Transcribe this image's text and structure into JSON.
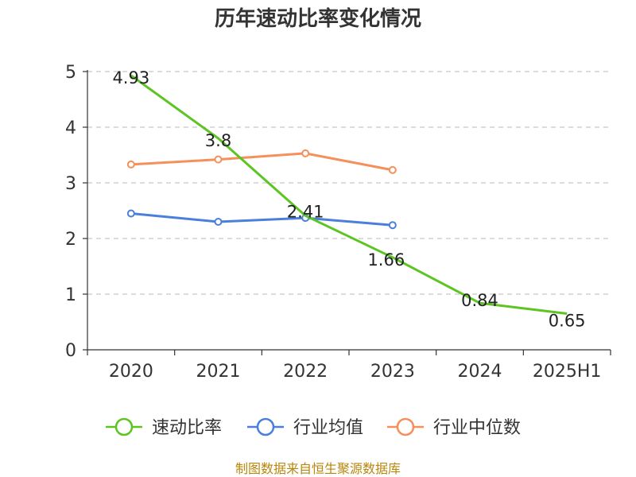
{
  "chart_data": {
    "type": "line",
    "title": "历年速动比率变化情况",
    "categories": [
      "2020",
      "2021",
      "2022",
      "2023",
      "2024",
      "2025H1"
    ],
    "ylim": [
      0,
      5
    ],
    "yticks": [
      "0",
      "1",
      "2",
      "3",
      "4",
      "5"
    ],
    "grid": true,
    "legend_position": "bottom",
    "series": [
      {
        "name": "速动比率",
        "color": "#5cc522",
        "values": [
          4.93,
          3.8,
          2.41,
          1.66,
          0.84,
          0.65
        ],
        "labels": [
          "4.93",
          "3.8",
          "2.41",
          "1.66",
          "0.84",
          "0.65"
        ],
        "show_markers": false
      },
      {
        "name": "行业均值",
        "color": "#4a7fdc",
        "values": [
          2.45,
          2.3,
          2.37,
          2.24,
          null,
          null
        ],
        "show_markers": true
      },
      {
        "name": "行业中位数",
        "color": "#f5905a",
        "values": [
          3.33,
          3.42,
          3.53,
          3.23,
          null,
          null
        ],
        "show_markers": true
      }
    ]
  },
  "source_note": "制图数据来自恒生聚源数据库"
}
